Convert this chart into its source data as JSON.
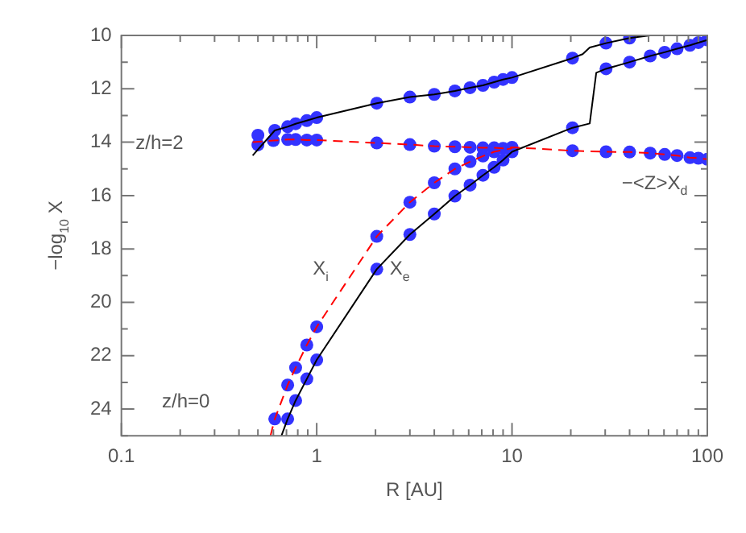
{
  "chart_data": {
    "type": "line",
    "xlabel": "R [AU]",
    "ylabel": "−log$_{10}$ X",
    "log": "x",
    "xlim": [
      0.1,
      100
    ],
    "xticks": [
      0.1,
      {
        "value": 0.2,
        "label": null
      },
      {
        "value": 0.3,
        "label": null
      },
      {
        "value": 0.4,
        "label": null
      },
      {
        "value": 0.5,
        "label": null
      },
      {
        "value": 0.6,
        "label": null
      },
      {
        "value": 0.7,
        "label": null
      },
      {
        "value": 0.8,
        "label": null
      },
      {
        "value": 0.9,
        "label": null
      },
      1,
      {
        "value": 2,
        "label": null
      },
      {
        "value": 3,
        "label": null
      },
      {
        "value": 4,
        "label": null
      },
      {
        "value": 5,
        "label": null
      },
      {
        "value": 6,
        "label": null
      },
      {
        "value": 7,
        "label": null
      },
      {
        "value": 8,
        "label": null
      },
      {
        "value": 9,
        "label": null
      },
      10,
      {
        "value": 20,
        "label": null
      },
      {
        "value": 30,
        "label": null
      },
      {
        "value": 40,
        "label": null
      },
      {
        "value": 50,
        "label": null
      },
      {
        "value": 60,
        "label": null
      },
      {
        "value": 70,
        "label": null
      },
      {
        "value": 80,
        "label": null
      },
      {
        "value": 90,
        "label": null
      },
      100
    ],
    "ylim": [
      25,
      10
    ],
    "yticks": [
      10,
      {
        "value": 11,
        "label": null
      },
      12,
      {
        "value": 13,
        "label": null
      },
      14,
      {
        "value": 15,
        "label": null
      },
      16,
      {
        "value": 17,
        "label": null
      },
      18,
      {
        "value": 19,
        "label": null
      },
      20,
      {
        "value": 21,
        "label": null
      },
      22,
      {
        "value": 23,
        "label": null
      },
      24,
      {
        "value": 25,
        "label": null
      }
    ],
    "grid": false,
    "legend": false,
    "series": [
      {
        "type": "line",
        "color": "#000000",
        "line_style": "solid",
        "marker": "none",
        "x": [
          0.47,
          0.61,
          0.71,
          0.78,
          0.89,
          1.0,
          2.03,
          3.0,
          4.0,
          5.1,
          6.1,
          7.1,
          8.1,
          9.0,
          10,
          20.4,
          23,
          25,
          30.3,
          40,
          51
        ],
        "values": [
          14.5,
          13.56,
          13.42,
          13.31,
          13.19,
          13.08,
          12.54,
          12.31,
          12.21,
          12.08,
          11.96,
          11.87,
          11.75,
          11.65,
          11.58,
          10.85,
          10.7,
          10.45,
          10.29,
          10.1,
          10.0
        ]
      },
      {
        "type": "line",
        "color": "#ff0000",
        "line_style": "dashed",
        "marker": "none",
        "x": [
          0.47,
          0.6,
          0.71,
          0.78,
          0.89,
          1.0,
          2.03,
          3.0,
          4.0,
          5.1,
          6.1,
          7.1,
          8.1,
          9.0,
          10,
          20.4,
          30.3,
          40,
          51,
          60.5,
          70,
          81.5,
          90,
          100
        ],
        "values": [
          14.0,
          13.94,
          13.9,
          13.9,
          13.92,
          13.92,
          14.03,
          14.09,
          14.15,
          14.17,
          14.19,
          14.21,
          14.21,
          14.23,
          14.19,
          14.32,
          14.36,
          14.37,
          14.41,
          14.46,
          14.5,
          14.58,
          14.6,
          14.64
        ]
      },
      {
        "type": "line",
        "color": "#ff0000",
        "line_style": "dashed",
        "marker": "none",
        "x": [
          0.58,
          0.61,
          0.71,
          0.78,
          0.89,
          1.0,
          2.03,
          3.0,
          4.0,
          5.1,
          6.1,
          7.1,
          8.1,
          9.0,
          10
        ],
        "values": [
          25,
          24.37,
          23.1,
          22.45,
          21.6,
          20.92,
          17.53,
          16.25,
          15.52,
          15.0,
          14.73,
          14.52,
          14.36,
          14.29,
          14.23
        ]
      },
      {
        "type": "line",
        "color": "#000000",
        "line_style": "solid",
        "marker": "none",
        "x": [
          0.66,
          0.71,
          0.78,
          0.89,
          1.0,
          2.03,
          3.0,
          4.0,
          5.1,
          6.1,
          7.1,
          8.1,
          9.0,
          10,
          20.4,
          25,
          27,
          30.3,
          40,
          51,
          60.5,
          70,
          81.5,
          90,
          100
        ],
        "values": [
          25,
          24.37,
          23.68,
          22.87,
          22.16,
          18.76,
          17.46,
          16.69,
          16.02,
          15.61,
          15.24,
          14.94,
          14.67,
          14.36,
          13.46,
          13.3,
          11.4,
          11.25,
          11.0,
          10.77,
          10.63,
          10.5,
          10.37,
          10.27,
          10.17
        ]
      },
      {
        "type": "scatter",
        "color": "#3333ff",
        "marker": "circle",
        "x": [
          0.5,
          0.5,
          0.61,
          0.71,
          0.78,
          0.89,
          1.0,
          2.03,
          3.0,
          4.0,
          5.1,
          6.1,
          7.1,
          8.1,
          9.0,
          10,
          20.4,
          30.3,
          40,
          0.6,
          0.71,
          0.78,
          0.89,
          1.0,
          2.03,
          3.0,
          4.0,
          5.1,
          6.1,
          7.1,
          8.1,
          9.0,
          10,
          20.4,
          30.3,
          40,
          51,
          60.5,
          70,
          81.5,
          90,
          100,
          0.61,
          0.71,
          0.78,
          0.89,
          1.0,
          2.03,
          3.0,
          4.0,
          5.1,
          6.1,
          7.1,
          8.1,
          0.71,
          0.78,
          0.89,
          1.0,
          2.03,
          3.0,
          4.0,
          5.1,
          6.1,
          7.1,
          8.1,
          9.0,
          10,
          20.4,
          30.3,
          40,
          51,
          60.5,
          70,
          81.5,
          90,
          100
        ],
        "values": [
          13.74,
          14.1,
          13.56,
          13.42,
          13.31,
          13.19,
          13.08,
          12.54,
          12.31,
          12.21,
          12.08,
          11.96,
          11.87,
          11.75,
          11.65,
          11.58,
          10.85,
          10.29,
          10.1,
          13.94,
          13.9,
          13.9,
          13.92,
          13.92,
          14.03,
          14.09,
          14.15,
          14.17,
          14.19,
          14.21,
          14.21,
          14.23,
          14.19,
          14.32,
          14.36,
          14.37,
          14.41,
          14.46,
          14.5,
          14.58,
          14.6,
          14.64,
          24.37,
          23.1,
          22.45,
          21.6,
          20.92,
          17.53,
          16.25,
          15.52,
          15.0,
          14.73,
          14.52,
          14.36,
          24.37,
          23.68,
          22.87,
          22.16,
          18.76,
          17.46,
          16.69,
          16.02,
          15.61,
          15.24,
          14.94,
          14.67,
          14.36,
          13.46,
          11.25,
          11.0,
          10.77,
          10.63,
          10.5,
          10.37,
          10.27,
          10.17
        ]
      }
    ],
    "annotations": [
      "z/h=2",
      "z/h=0",
      "X$_{i}$",
      "X$_{e}$",
      "−<Z>X$_{d}$"
    ]
  }
}
